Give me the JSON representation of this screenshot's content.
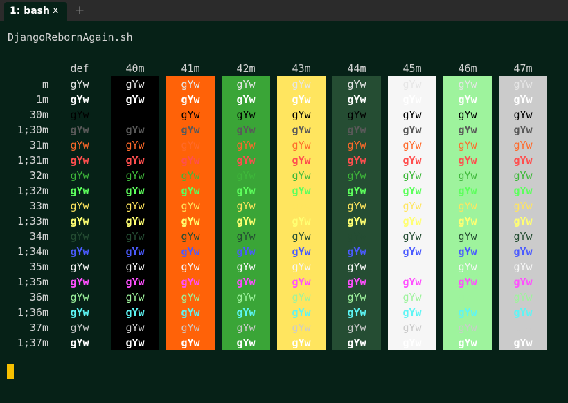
{
  "tab": {
    "title": "1: bash",
    "close": "x",
    "new_tab": "+"
  },
  "terminal": {
    "command": "DjangoRebornAgain.sh",
    "sample_text": "gYw"
  },
  "columns": [
    {
      "header": "def",
      "bg": null
    },
    {
      "header": "40m",
      "bg": "#000000"
    },
    {
      "header": "41m",
      "bg": "#ff6208"
    },
    {
      "header": "42m",
      "bg": "#3aa537"
    },
    {
      "header": "43m",
      "bg": "#ffe55f"
    },
    {
      "header": "44m",
      "bg": "#254d33"
    },
    {
      "header": "45m",
      "bg": "#f6f6f6"
    },
    {
      "header": "46m",
      "bg": "#9ef39d"
    },
    {
      "header": "47m",
      "bg": "#cbcbcb"
    }
  ],
  "rows": [
    {
      "label": "m",
      "fg": "#e6e6e6",
      "bold": false
    },
    {
      "label": "1m",
      "fg": "#ffffff",
      "bold": true
    },
    {
      "label": "30m",
      "fg": "#000000",
      "bold": false
    },
    {
      "label": "1;30m",
      "fg": "#595959",
      "bold": true
    },
    {
      "label": "31m",
      "fg": "#ff6a2a",
      "bold": false
    },
    {
      "label": "1;31m",
      "fg": "#ff4f4f",
      "bold": true
    },
    {
      "label": "32m",
      "fg": "#3eb83a",
      "bold": false
    },
    {
      "label": "1;32m",
      "fg": "#5dff5d",
      "bold": true
    },
    {
      "label": "33m",
      "fg": "#ffe55f",
      "bold": false
    },
    {
      "label": "1;33m",
      "fg": "#ffff72",
      "bold": true
    },
    {
      "label": "34m",
      "fg": "#254d33",
      "bold": false
    },
    {
      "label": "1;34m",
      "fg": "#4b5bff",
      "bold": true
    },
    {
      "label": "35m",
      "fg": "#f6f6f6",
      "bold": false
    },
    {
      "label": "1;35m",
      "fg": "#ff4fff",
      "bold": true
    },
    {
      "label": "36m",
      "fg": "#9ef39d",
      "bold": false
    },
    {
      "label": "1;36m",
      "fg": "#5df5f5",
      "bold": true
    },
    {
      "label": "37m",
      "fg": "#cbcbcb",
      "bold": false
    },
    {
      "label": "1;37m",
      "fg": "#ffffff",
      "bold": true
    }
  ]
}
